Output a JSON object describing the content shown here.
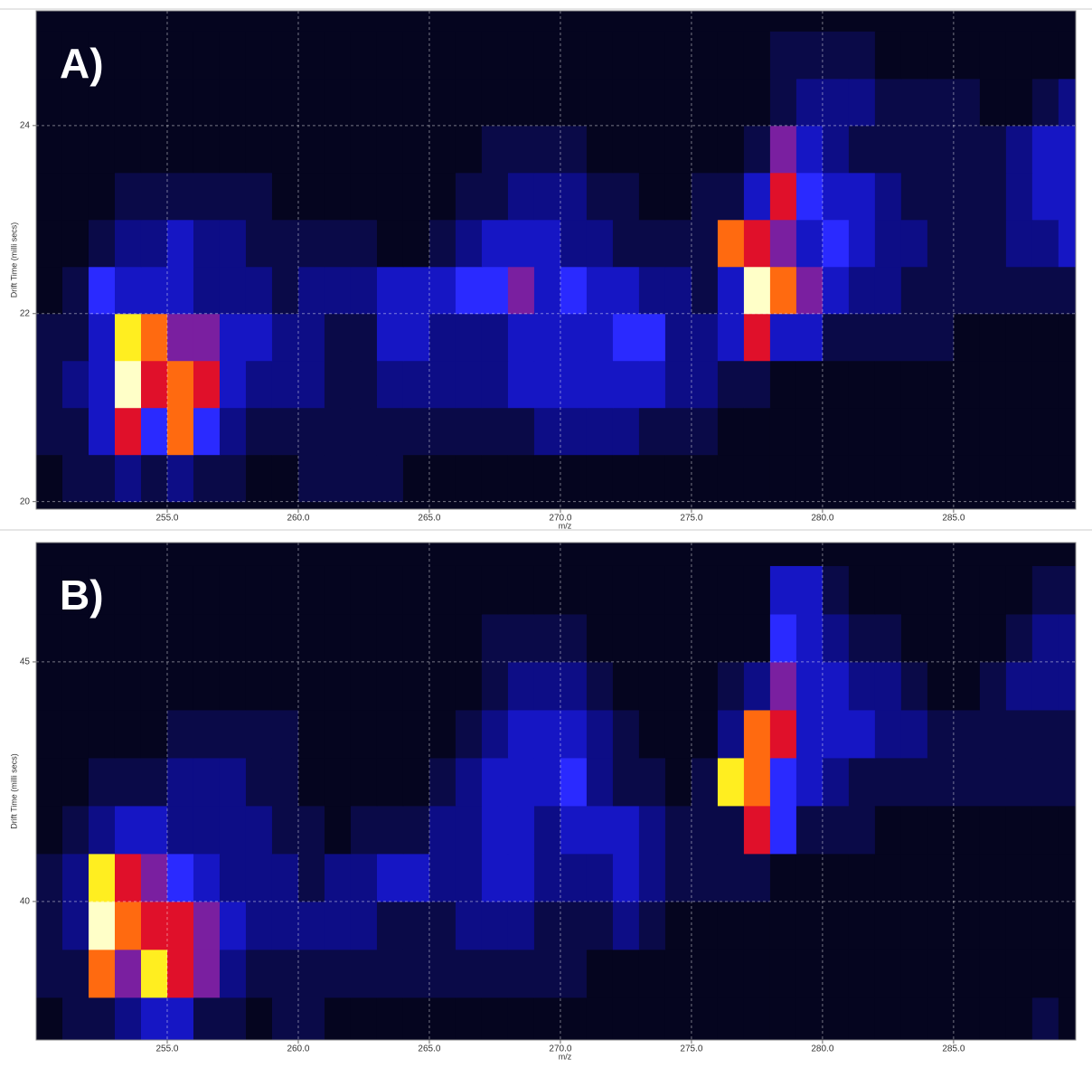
{
  "chart_data": [
    {
      "type": "heatmap",
      "label": "A)",
      "xlabel": "m/z",
      "ylabel": "Drift Time (milli secs)",
      "xlim": [
        250,
        289.66
      ],
      "ylim": [
        19.92,
        25.22
      ],
      "xticks": [
        {
          "value": 255,
          "label": "255.0"
        },
        {
          "value": 260,
          "label": "260.0"
        },
        {
          "value": 265,
          "label": "265.0"
        },
        {
          "value": 270,
          "label": "270.0"
        },
        {
          "value": 275,
          "label": "275.0"
        },
        {
          "value": 280,
          "label": "280.0"
        },
        {
          "value": 285,
          "label": "285.0"
        }
      ],
      "yticks": [
        20,
        22,
        24
      ],
      "grid": true,
      "colorscale": [
        "#05051f",
        "#0a0a48",
        "#0d0d86",
        "#1616c4",
        "#2a2aff",
        "#7a1fa0",
        "#e0102a",
        "#ff6a10",
        "#ffee20",
        "#ffffc8"
      ],
      "xbins": [
        250,
        251,
        252,
        253,
        254,
        255,
        256,
        257,
        258,
        259,
        260,
        261,
        262,
        263,
        264,
        265,
        266,
        267,
        268,
        269,
        270,
        271,
        272,
        273,
        274,
        275,
        276,
        277,
        278,
        279,
        280,
        281,
        282,
        283,
        284,
        285,
        286,
        287,
        288,
        289,
        290
      ],
      "ybins": [
        20,
        20.5,
        21,
        21.5,
        22,
        22.5,
        23,
        23.5,
        24,
        24.5,
        25
      ],
      "z": [
        [
          0,
          1,
          1,
          2,
          1,
          2,
          1,
          1,
          0,
          0,
          1,
          1,
          1,
          1,
          0,
          0,
          0,
          0,
          0,
          0,
          0,
          0,
          0,
          0,
          0,
          0,
          0,
          0,
          0,
          0,
          0,
          0,
          0,
          0,
          0,
          0,
          0,
          0,
          0,
          0
        ],
        [
          1,
          1,
          3,
          6,
          4,
          7,
          4,
          2,
          1,
          1,
          1,
          1,
          1,
          1,
          1,
          1,
          1,
          1,
          1,
          2,
          2,
          2,
          2,
          1,
          1,
          1,
          0,
          0,
          0,
          0,
          0,
          0,
          0,
          0,
          0,
          0,
          0,
          0,
          0,
          0
        ],
        [
          1,
          2,
          3,
          9,
          6,
          7,
          6,
          3,
          2,
          2,
          2,
          1,
          1,
          2,
          2,
          2,
          2,
          2,
          3,
          3,
          3,
          3,
          3,
          3,
          2,
          2,
          1,
          1,
          0,
          0,
          0,
          0,
          0,
          0,
          0,
          0,
          0,
          0,
          0,
          0
        ],
        [
          1,
          1,
          3,
          8,
          7,
          5,
          5,
          3,
          3,
          2,
          2,
          1,
          1,
          3,
          3,
          2,
          2,
          2,
          3,
          3,
          3,
          3,
          4,
          4,
          2,
          2,
          3,
          6,
          3,
          3,
          1,
          1,
          1,
          1,
          1,
          0,
          0,
          0,
          0,
          0
        ],
        [
          0,
          1,
          4,
          3,
          3,
          3,
          2,
          2,
          2,
          1,
          2,
          2,
          2,
          3,
          3,
          3,
          4,
          4,
          5,
          3,
          4,
          3,
          3,
          2,
          2,
          1,
          3,
          9,
          7,
          5,
          3,
          2,
          2,
          1,
          1,
          1,
          1,
          1,
          1,
          1
        ],
        [
          0,
          0,
          1,
          2,
          2,
          3,
          2,
          2,
          1,
          1,
          1,
          1,
          1,
          0,
          0,
          1,
          2,
          3,
          3,
          3,
          2,
          2,
          1,
          1,
          1,
          1,
          7,
          6,
          5,
          3,
          4,
          3,
          2,
          2,
          1,
          1,
          1,
          2,
          2,
          3
        ],
        [
          0,
          0,
          0,
          1,
          1,
          1,
          1,
          1,
          1,
          0,
          0,
          0,
          0,
          0,
          0,
          0,
          1,
          1,
          2,
          2,
          2,
          1,
          1,
          0,
          0,
          1,
          1,
          3,
          6,
          4,
          3,
          3,
          2,
          1,
          1,
          1,
          1,
          2,
          3,
          3
        ],
        [
          0,
          0,
          0,
          0,
          0,
          0,
          0,
          0,
          0,
          0,
          0,
          0,
          0,
          0,
          0,
          0,
          0,
          1,
          1,
          1,
          1,
          0,
          0,
          0,
          0,
          0,
          0,
          1,
          5,
          3,
          2,
          1,
          1,
          1,
          1,
          1,
          1,
          2,
          3,
          3
        ],
        [
          0,
          0,
          0,
          0,
          0,
          0,
          0,
          0,
          0,
          0,
          0,
          0,
          0,
          0,
          0,
          0,
          0,
          0,
          0,
          0,
          0,
          0,
          0,
          0,
          0,
          0,
          0,
          0,
          1,
          2,
          2,
          2,
          1,
          1,
          1,
          1,
          0,
          0,
          1,
          2
        ],
        [
          0,
          0,
          0,
          0,
          0,
          0,
          0,
          0,
          0,
          0,
          0,
          0,
          0,
          0,
          0,
          0,
          0,
          0,
          0,
          0,
          0,
          0,
          0,
          0,
          0,
          0,
          0,
          0,
          1,
          1,
          1,
          1,
          0,
          0,
          0,
          0,
          0,
          0,
          0,
          0
        ]
      ]
    },
    {
      "type": "heatmap",
      "label": "B)",
      "xlabel": "m/z",
      "ylabel": "Drift Time (milli secs)",
      "xlim": [
        250,
        289.66
      ],
      "ylim": [
        37.11,
        47.49
      ],
      "xticks": [
        {
          "value": 255,
          "label": "255.0"
        },
        {
          "value": 260,
          "label": "260.0"
        },
        {
          "value": 265,
          "label": "265.0"
        },
        {
          "value": 270,
          "label": "270.0"
        },
        {
          "value": 275,
          "label": "275.0"
        },
        {
          "value": 280,
          "label": "280.0"
        },
        {
          "value": 285,
          "label": "285.0"
        }
      ],
      "yticks": [
        40,
        45
      ],
      "grid": true,
      "colorscale": [
        "#05051f",
        "#0a0a48",
        "#0d0d86",
        "#1616c4",
        "#2a2aff",
        "#7a1fa0",
        "#e0102a",
        "#ff6a10",
        "#ffee20",
        "#ffffc8"
      ],
      "xbins": [
        250,
        251,
        252,
        253,
        254,
        255,
        256,
        257,
        258,
        259,
        260,
        261,
        262,
        263,
        264,
        265,
        266,
        267,
        268,
        269,
        270,
        271,
        272,
        273,
        274,
        275,
        276,
        277,
        278,
        279,
        280,
        281,
        282,
        283,
        284,
        285,
        286,
        287,
        288,
        289,
        290
      ],
      "ybins": [
        37,
        38,
        39,
        40,
        41,
        42,
        43,
        44,
        45,
        46,
        47
      ],
      "z": [
        [
          0,
          1,
          1,
          2,
          3,
          3,
          1,
          1,
          0,
          1,
          1,
          0,
          0,
          0,
          0,
          0,
          0,
          0,
          0,
          0,
          0,
          0,
          0,
          0,
          0,
          0,
          0,
          0,
          0,
          0,
          0,
          0,
          0,
          0,
          0,
          0,
          0,
          0,
          1,
          0
        ],
        [
          1,
          1,
          7,
          5,
          8,
          6,
          5,
          2,
          1,
          1,
          1,
          1,
          1,
          1,
          1,
          1,
          1,
          1,
          1,
          1,
          1,
          0,
          0,
          0,
          0,
          0,
          0,
          0,
          0,
          0,
          0,
          0,
          0,
          0,
          0,
          0,
          0,
          0,
          0,
          0
        ],
        [
          1,
          2,
          9,
          7,
          6,
          6,
          5,
          3,
          2,
          2,
          2,
          2,
          2,
          1,
          1,
          1,
          2,
          2,
          2,
          1,
          1,
          1,
          2,
          1,
          0,
          0,
          0,
          0,
          0,
          0,
          0,
          0,
          0,
          0,
          0,
          0,
          0,
          0,
          0,
          0
        ],
        [
          1,
          2,
          8,
          6,
          5,
          4,
          3,
          2,
          2,
          2,
          1,
          2,
          2,
          3,
          3,
          2,
          2,
          3,
          3,
          2,
          2,
          2,
          3,
          2,
          1,
          1,
          1,
          1,
          0,
          0,
          0,
          0,
          0,
          0,
          0,
          0,
          0,
          0,
          0,
          0
        ],
        [
          0,
          1,
          2,
          3,
          3,
          2,
          2,
          2,
          2,
          1,
          1,
          0,
          1,
          1,
          1,
          2,
          2,
          3,
          3,
          2,
          3,
          3,
          3,
          2,
          1,
          1,
          1,
          6,
          4,
          1,
          1,
          1,
          0,
          0,
          0,
          0,
          0,
          0,
          0,
          0
        ],
        [
          0,
          0,
          1,
          1,
          1,
          2,
          2,
          2,
          1,
          1,
          0,
          0,
          0,
          0,
          0,
          1,
          2,
          3,
          3,
          3,
          4,
          2,
          1,
          1,
          0,
          1,
          8,
          7,
          4,
          3,
          2,
          1,
          1,
          1,
          1,
          1,
          1,
          1,
          1,
          1
        ],
        [
          0,
          0,
          0,
          0,
          0,
          1,
          1,
          1,
          1,
          1,
          0,
          0,
          0,
          0,
          0,
          0,
          1,
          2,
          3,
          3,
          3,
          2,
          1,
          0,
          0,
          0,
          2,
          7,
          6,
          3,
          3,
          3,
          2,
          2,
          1,
          1,
          1,
          1,
          1,
          1
        ],
        [
          0,
          0,
          0,
          0,
          0,
          0,
          0,
          0,
          0,
          0,
          0,
          0,
          0,
          0,
          0,
          0,
          0,
          1,
          2,
          2,
          2,
          1,
          0,
          0,
          0,
          0,
          1,
          2,
          5,
          3,
          3,
          2,
          2,
          1,
          0,
          0,
          1,
          2,
          2,
          2
        ],
        [
          0,
          0,
          0,
          0,
          0,
          0,
          0,
          0,
          0,
          0,
          0,
          0,
          0,
          0,
          0,
          0,
          0,
          1,
          1,
          1,
          1,
          0,
          0,
          0,
          0,
          0,
          0,
          0,
          4,
          3,
          2,
          1,
          1,
          0,
          0,
          0,
          0,
          1,
          2,
          2
        ],
        [
          0,
          0,
          0,
          0,
          0,
          0,
          0,
          0,
          0,
          0,
          0,
          0,
          0,
          0,
          0,
          0,
          0,
          0,
          0,
          0,
          0,
          0,
          0,
          0,
          0,
          0,
          0,
          0,
          3,
          3,
          1,
          0,
          0,
          0,
          0,
          0,
          0,
          0,
          1,
          1
        ]
      ]
    }
  ]
}
